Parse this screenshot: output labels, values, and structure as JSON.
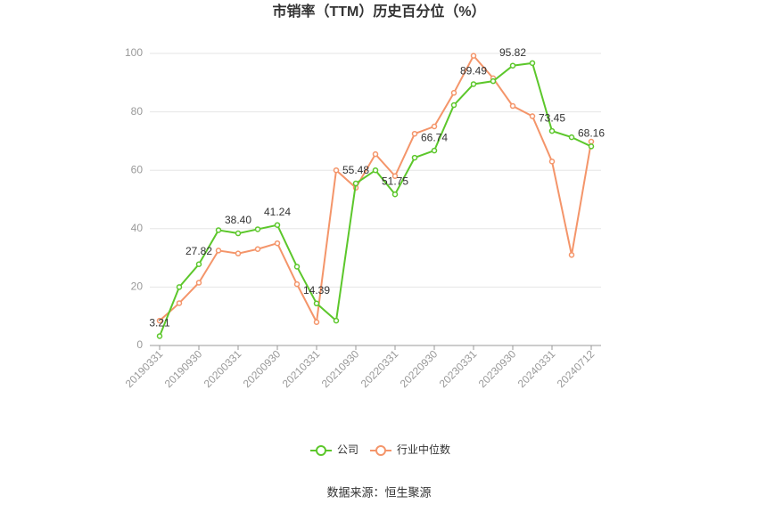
{
  "chart_data": {
    "type": "line",
    "title": "市销率（TTM）历史百分位（%）",
    "source": "数据来源：恒生聚源",
    "categories": [
      "20190331",
      null,
      "20190930",
      null,
      "20200331",
      null,
      "20200930",
      null,
      "20210331",
      null,
      "20210930",
      null,
      "20220331",
      null,
      "20220930",
      null,
      "20230331",
      null,
      "20230930",
      null,
      "20240331",
      null,
      "20240712"
    ],
    "series": [
      {
        "name": "公司",
        "color": "#5cc72b",
        "values": [
          3.21,
          20,
          27.82,
          39.5,
          38.4,
          39.8,
          41.24,
          27,
          14.39,
          8.5,
          55.48,
          60,
          51.75,
          64.3,
          66.74,
          82.3,
          89.49,
          90.5,
          95.82,
          96.7,
          73.45,
          71.3,
          68.16
        ],
        "value_labels": [
          "3.21",
          null,
          "27.82",
          null,
          "38.40",
          null,
          "41.24",
          null,
          "14.39",
          null,
          "55.48",
          null,
          "51.75",
          null,
          "66.74",
          null,
          "89.49",
          null,
          "95.82",
          null,
          "73.45",
          null,
          "68.16"
        ]
      },
      {
        "name": "行业中位数",
        "color": "#f4956a",
        "values": [
          8.5,
          14.5,
          21.5,
          32.5,
          31.5,
          33,
          35,
          21,
          8,
          60,
          54,
          65.5,
          58,
          72.5,
          75,
          86.5,
          99.2,
          91.5,
          82,
          78.5,
          63,
          31,
          69.8
        ]
      }
    ],
    "ylim": [
      0,
      100
    ],
    "yticks": [
      0,
      20,
      40,
      60,
      80,
      100
    ],
    "grid": true
  }
}
